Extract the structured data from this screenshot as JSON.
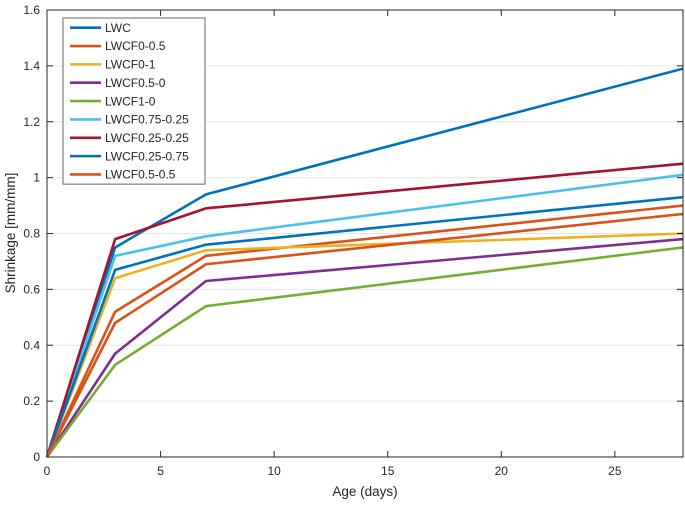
{
  "figure": {
    "background": "#ffffff",
    "axis_color": "#262626",
    "grid_color": "#e6e6e6",
    "legend_border_color": "#808080",
    "legend_background": "#ffffff"
  },
  "chart_data": {
    "type": "line",
    "title": "",
    "xlabel": "Age (days)",
    "ylabel": "Shrinkage [mm/mm]",
    "xlim": [
      0,
      28
    ],
    "ylim": [
      0,
      1.6
    ],
    "xticks": [
      0,
      5,
      10,
      15,
      20,
      25
    ],
    "xtick_labels": [
      "0",
      "5",
      "10",
      "15",
      "20",
      "25"
    ],
    "yticks": [
      0,
      0.2,
      0.4,
      0.6,
      0.8,
      1,
      1.2,
      1.4,
      1.6
    ],
    "ytick_labels": [
      "0",
      "0.2",
      "0.4",
      "0.6",
      "0.8",
      "1",
      "1.2",
      "1.4",
      "1.6"
    ],
    "grid": "horizontal-only",
    "legend_position": "top-left",
    "line_width": 2.6,
    "x": [
      0,
      3,
      7,
      28
    ],
    "series": [
      {
        "name": "LWC",
        "color": "#0072BD",
        "values": [
          0,
          0.75,
          0.94,
          1.39
        ]
      },
      {
        "name": "LWCF0-0.5",
        "color": "#D95319",
        "values": [
          0,
          0.52,
          0.72,
          0.9
        ]
      },
      {
        "name": "LWCF0-1",
        "color": "#EDB120",
        "values": [
          0,
          0.64,
          0.74,
          0.8
        ]
      },
      {
        "name": "LWCF0.5-0",
        "color": "#7E2F8E",
        "values": [
          0,
          0.37,
          0.63,
          0.78
        ]
      },
      {
        "name": "LWCF1-0",
        "color": "#77AC30",
        "values": [
          0,
          0.33,
          0.54,
          0.75
        ]
      },
      {
        "name": "LWCF0.75-0.25",
        "color": "#4DBEEE",
        "values": [
          0,
          0.72,
          0.79,
          1.01
        ]
      },
      {
        "name": "LWCF0.25-0.25",
        "color": "#A2142F",
        "values": [
          0,
          0.78,
          0.89,
          1.05
        ]
      },
      {
        "name": "LWCF0.25-0.75",
        "color": "#0072BD",
        "values": [
          0,
          0.67,
          0.76,
          0.93
        ]
      },
      {
        "name": "LWCF0.5-0.5",
        "color": "#D95319",
        "values": [
          0,
          0.48,
          0.69,
          0.87
        ]
      }
    ]
  }
}
